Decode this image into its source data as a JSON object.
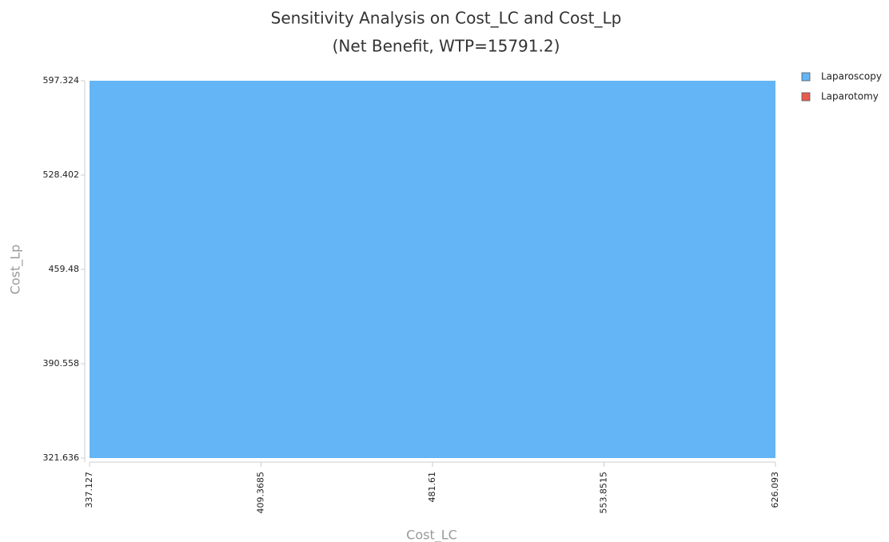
{
  "chart_data": {
    "type": "region",
    "title": "Sensitivity Analysis on Cost_LC and Cost_Lp",
    "subtitle": "(Net Benefit, WTP=15791.2)",
    "x_label": "Cost_LC",
    "y_label": "Cost_Lp",
    "series": [
      {
        "name": "Laparoscopy",
        "color": "#64b5f6"
      },
      {
        "name": "Laparotomy",
        "color": "#e85c50"
      }
    ],
    "xlim": [
      337.127,
      626.093
    ],
    "xticks": [
      337.127,
      409.3685,
      481.61,
      553.8515,
      626.093
    ],
    "ylim": [
      321.636,
      597.324
    ],
    "yticks": [
      321.636,
      390.558,
      459.48,
      528.402,
      597.324
    ]
  }
}
